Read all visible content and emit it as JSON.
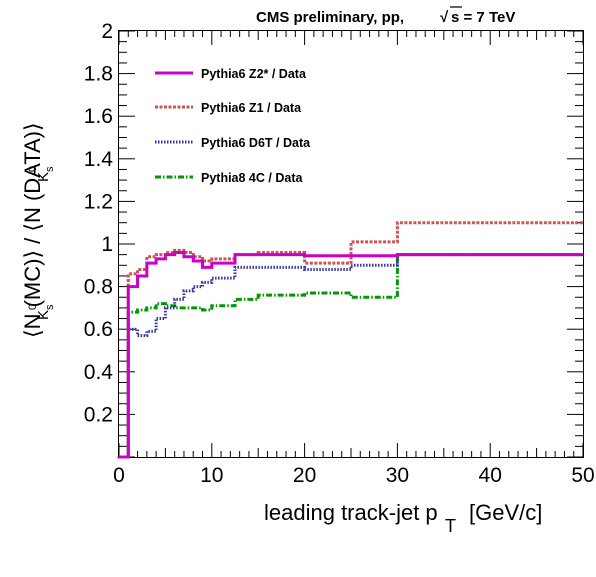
{
  "header": {
    "prefix": "CMS preliminary, pp,",
    "sqrt_symbol": "√",
    "energy": "s = 7 TeV"
  },
  "chart_data": {
    "type": "line",
    "title": "",
    "xlabel": "leading track-jet p",
    "xlabel_subscript": "T",
    "xlabel_unit": "[GeV/c]",
    "ylabel_text": "⟨N   (MC)⟩ / ⟨N   (DATA)⟩",
    "ylabel_sub_base": "K",
    "ylabel_sup": "0",
    "ylabel_sub2": "s",
    "xlim": [
      0,
      50
    ],
    "ylim": [
      0,
      2
    ],
    "xticks": [
      0,
      10,
      20,
      30,
      40,
      50
    ],
    "yticks": [
      0.2,
      0.4,
      0.6,
      0.8,
      1,
      1.2,
      1.4,
      1.6,
      1.8,
      2
    ],
    "ytick_labels": [
      "0.2",
      "0.4",
      "0.6",
      "0.8",
      "1",
      "1.2",
      "1.4",
      "1.6",
      "1.8",
      "2"
    ],
    "xtick_labels": [
      "0",
      "10",
      "20",
      "30",
      "40",
      "50"
    ],
    "bin_edges": [
      0,
      1,
      2,
      3,
      4,
      5,
      6,
      7,
      8,
      9,
      10,
      12.5,
      15,
      20,
      25,
      30,
      50
    ],
    "grid": false,
    "legend_position": "top-left",
    "series": [
      {
        "name": "Pythia6 Z2* / Data",
        "color": "#cc00cc",
        "style": "solid",
        "values": [
          0.0,
          0.8,
          0.85,
          0.91,
          0.93,
          0.95,
          0.96,
          0.94,
          0.92,
          0.89,
          0.91,
          0.95,
          0.95,
          0.945,
          0.945,
          0.95
        ]
      },
      {
        "name": "Pythia6 Z1 / Data",
        "color": "#cc5555",
        "style": "dashed",
        "values": [
          0.0,
          0.86,
          0.88,
          0.94,
          0.95,
          0.96,
          0.97,
          0.96,
          0.94,
          0.92,
          0.93,
          0.95,
          0.96,
          0.91,
          1.01,
          1.1
        ]
      },
      {
        "name": "Pythia6 D6T / Data",
        "color": "#3333aa",
        "style": "dotted",
        "values": [
          0.0,
          0.6,
          0.57,
          0.59,
          0.65,
          0.7,
          0.74,
          0.78,
          0.8,
          0.82,
          0.84,
          0.89,
          0.89,
          0.88,
          0.9,
          0.95
        ]
      },
      {
        "name": "Pythia8 4C / Data",
        "color": "#009900",
        "style": "dashdot",
        "values": [
          0.0,
          0.68,
          0.69,
          0.7,
          0.72,
          0.71,
          0.7,
          0.7,
          0.7,
          0.69,
          0.71,
          0.74,
          0.76,
          0.77,
          0.75,
          0.95
        ]
      }
    ]
  }
}
